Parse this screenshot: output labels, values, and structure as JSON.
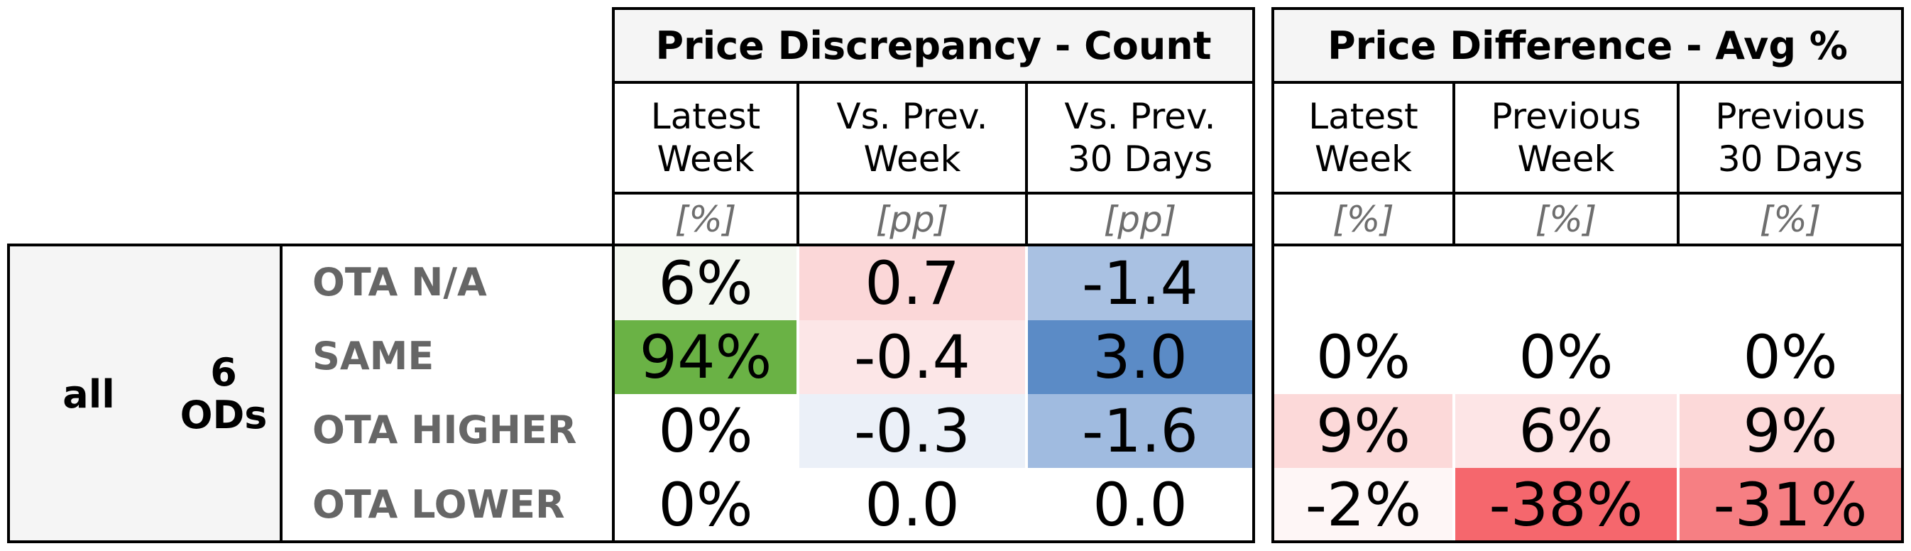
{
  "colors": {
    "header_bg": "#f5f5f5",
    "label_bg": "#f5f5f5",
    "text_muted": "#666666",
    "unit_text": "#6e6e6e",
    "green_scale": "#6ab245",
    "blue_scale": "#5b8bc6",
    "red_scale": "#f5676d"
  },
  "chart_data": {
    "type": "table",
    "groups": [
      {
        "title": "Price Discrepancy - Count",
        "columns": [
          {
            "label": "Latest\nWeek",
            "unit": "[%]"
          },
          {
            "label": "Vs. Prev.\nWeek",
            "unit": "[pp]"
          },
          {
            "label": "Vs. Prev.\n30 Days",
            "unit": "[pp]"
          }
        ]
      },
      {
        "title": "Price Difference - Avg %",
        "columns": [
          {
            "label": "Latest\nWeek",
            "unit": "[%]"
          },
          {
            "label": "Previous\nWeek",
            "unit": "[%]"
          },
          {
            "label": "Previous\n30 Days",
            "unit": "[%]"
          }
        ]
      }
    ],
    "row_group": {
      "name": "all",
      "count": "6\nODs"
    },
    "rows": [
      {
        "label": "OTA N/A",
        "count": [
          {
            "text": "6%",
            "bg": "#f3f7f0"
          },
          {
            "text": "0.7",
            "bg": "#fbd7d8"
          },
          {
            "text": "-1.4",
            "bg": "#a9c1e2"
          }
        ],
        "avg": [
          {
            "text": "",
            "bg": "#ffffff"
          },
          {
            "text": "",
            "bg": "#ffffff"
          },
          {
            "text": "",
            "bg": "#ffffff"
          }
        ]
      },
      {
        "label": "SAME",
        "count": [
          {
            "text": "94%",
            "bg": "#6ab245"
          },
          {
            "text": "-0.4",
            "bg": "#fce6e7"
          },
          {
            "text": "3.0",
            "bg": "#5b8bc6"
          }
        ],
        "avg": [
          {
            "text": "0%",
            "bg": "#ffffff"
          },
          {
            "text": "0%",
            "bg": "#ffffff"
          },
          {
            "text": "0%",
            "bg": "#ffffff"
          }
        ]
      },
      {
        "label": "OTA HIGHER",
        "count": [
          {
            "text": "0%",
            "bg": "#ffffff"
          },
          {
            "text": "-0.3",
            "bg": "#ebf0f8"
          },
          {
            "text": "-1.6",
            "bg": "#a0bbe0"
          }
        ],
        "avg": [
          {
            "text": "9%",
            "bg": "#fcd9d9"
          },
          {
            "text": "6%",
            "bg": "#fde5e6"
          },
          {
            "text": "9%",
            "bg": "#fcd9d9"
          }
        ]
      },
      {
        "label": "OTA LOWER",
        "count": [
          {
            "text": "0%",
            "bg": "#ffffff"
          },
          {
            "text": "0.0",
            "bg": "#ffffff"
          },
          {
            "text": "0.0",
            "bg": "#ffffff"
          }
        ],
        "avg": [
          {
            "text": "-2%",
            "bg": "#fef6f6"
          },
          {
            "text": "-38%",
            "bg": "#f5676d"
          },
          {
            "text": "-31%",
            "bg": "#f67f83"
          }
        ]
      }
    ]
  }
}
